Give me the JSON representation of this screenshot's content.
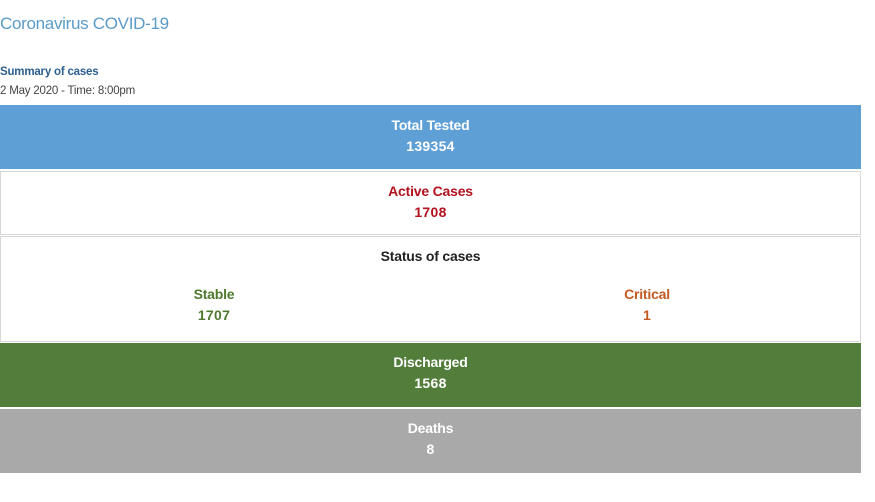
{
  "page": {
    "title": "Coronavirus COVID-19",
    "summary_heading": "Summary of cases",
    "summary_date": "2 May 2020 - Time: 8:00pm"
  },
  "panels": {
    "total_tested": {
      "label": "Total Tested",
      "value": "139354",
      "color": "#5e9fd6"
    },
    "active_cases": {
      "label": "Active Cases",
      "value": "1708",
      "color": "#b3121f"
    },
    "status": {
      "label": "Status of cases",
      "stable": {
        "label": "Stable",
        "value": "1707",
        "color": "#4f7a2e"
      },
      "critical": {
        "label": "Critical",
        "value": "1",
        "color": "#c25a22"
      }
    },
    "discharged": {
      "label": "Discharged",
      "value": "1568",
      "color": "#537d3a"
    },
    "deaths": {
      "label": "Deaths",
      "value": "8",
      "color": "#a9a9a9"
    }
  }
}
